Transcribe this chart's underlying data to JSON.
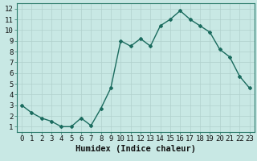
{
  "x": [
    0,
    1,
    2,
    3,
    4,
    5,
    6,
    7,
    8,
    9,
    10,
    11,
    12,
    13,
    14,
    15,
    16,
    17,
    18,
    19,
    20,
    21,
    22,
    23
  ],
  "y": [
    3.0,
    2.3,
    1.8,
    1.5,
    1.0,
    1.0,
    1.8,
    1.1,
    2.7,
    4.6,
    9.0,
    8.5,
    9.2,
    8.5,
    10.4,
    11.0,
    11.8,
    11.0,
    10.4,
    9.8,
    8.2,
    7.5,
    5.7,
    4.6
  ],
  "line_color": "#1a6b5e",
  "marker": "D",
  "marker_size": 2.0,
  "bg_color": "#c8e8e4",
  "grid_color": "#b0d0cc",
  "xlabel": "Humidex (Indice chaleur)",
  "xlim": [
    -0.5,
    23.5
  ],
  "ylim": [
    0.5,
    12.5
  ],
  "xticks": [
    0,
    1,
    2,
    3,
    4,
    5,
    6,
    7,
    8,
    9,
    10,
    11,
    12,
    13,
    14,
    15,
    16,
    17,
    18,
    19,
    20,
    21,
    22,
    23
  ],
  "yticks": [
    1,
    2,
    3,
    4,
    5,
    6,
    7,
    8,
    9,
    10,
    11,
    12
  ],
  "tick_fontsize": 6.5,
  "xlabel_fontsize": 7.5,
  "line_width": 1.0
}
